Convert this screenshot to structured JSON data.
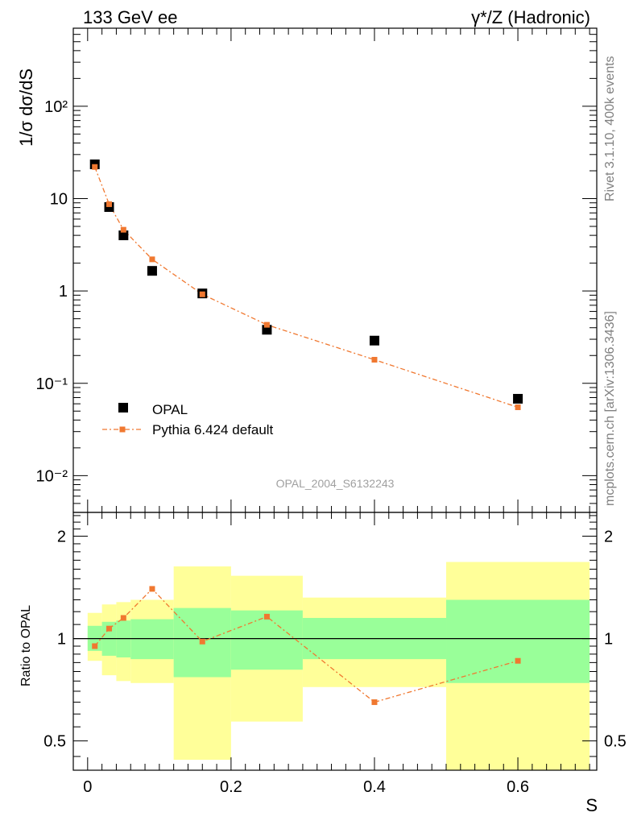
{
  "header": {
    "left": "133 GeV ee",
    "right": "γ*/Z (Hadronic)"
  },
  "side_labels": {
    "rivet": "Rivet 3.1.10,  400k events",
    "mcplots": "mcplots.cern.ch [arXiv:1306.3436]"
  },
  "watermark": "OPAL_2004_S6132243",
  "colors": {
    "data": "#000000",
    "mc": "#f07830",
    "band_inner": "#99ff99",
    "band_outer": "#ffff99"
  },
  "chart_data": [
    {
      "type": "scatter",
      "panel": "main",
      "ylabel": "1/σ dσ/dS",
      "yscale": "log",
      "ylim": [
        0.004,
        700
      ],
      "xlim": [
        -0.02,
        0.71
      ],
      "ytick_labels": [
        "10⁻²",
        "10⁻¹",
        "1",
        "10",
        "10²"
      ],
      "ytick_values": [
        0.01,
        0.1,
        1,
        10,
        100
      ],
      "legend_position": "bottom-left",
      "series": [
        {
          "name": "OPAL",
          "marker": "square",
          "x": [
            0.01,
            0.03,
            0.05,
            0.09,
            0.16,
            0.25,
            0.4,
            0.6
          ],
          "y": [
            23.5,
            8.1,
            4.0,
            1.65,
            0.94,
            0.38,
            0.29,
            0.068
          ]
        },
        {
          "name": "Pythia 6.424 default",
          "marker": "square-small",
          "line": "dash-dot",
          "x": [
            0.01,
            0.03,
            0.05,
            0.09,
            0.16,
            0.25,
            0.4,
            0.6
          ],
          "y": [
            22.0,
            8.7,
            4.6,
            2.2,
            0.92,
            0.43,
            0.18,
            0.055
          ]
        }
      ]
    },
    {
      "type": "line",
      "panel": "ratio",
      "ylabel": "Ratio to OPAL",
      "xlabel": "S",
      "yscale": "log",
      "ylim": [
        0.41,
        2.35
      ],
      "xlim": [
        -0.02,
        0.71
      ],
      "xtick_labels": [
        "0",
        "0.2",
        "0.4",
        "0.6"
      ],
      "xtick_values": [
        0,
        0.2,
        0.4,
        0.6
      ],
      "ytick_labels": [
        "0.5",
        "1",
        "2"
      ],
      "ytick_values": [
        0.5,
        1,
        2
      ],
      "bins": [
        {
          "x0": 0.0,
          "x1": 0.02,
          "inner": [
            0.92,
            1.09
          ],
          "outer": [
            0.86,
            1.19
          ]
        },
        {
          "x0": 0.02,
          "x1": 0.04,
          "inner": [
            0.89,
            1.12
          ],
          "outer": [
            0.78,
            1.26
          ]
        },
        {
          "x0": 0.04,
          "x1": 0.06,
          "inner": [
            0.88,
            1.13
          ],
          "outer": [
            0.75,
            1.28
          ]
        },
        {
          "x0": 0.06,
          "x1": 0.12,
          "inner": [
            0.87,
            1.14
          ],
          "outer": [
            0.74,
            1.3
          ]
        },
        {
          "x0": 0.12,
          "x1": 0.2,
          "inner": [
            0.77,
            1.23
          ],
          "outer": [
            0.44,
            1.63
          ]
        },
        {
          "x0": 0.2,
          "x1": 0.3,
          "inner": [
            0.81,
            1.21
          ],
          "outer": [
            0.57,
            1.53
          ]
        },
        {
          "x0": 0.3,
          "x1": 0.5,
          "inner": [
            0.87,
            1.15
          ],
          "outer": [
            0.72,
            1.32
          ]
        },
        {
          "x0": 0.5,
          "x1": 0.7,
          "inner": [
            0.74,
            1.3
          ],
          "outer": [
            0.41,
            1.68
          ]
        }
      ],
      "reference": 1,
      "series": [
        {
          "name": "Pythia 6.424 default",
          "x": [
            0.01,
            0.03,
            0.05,
            0.09,
            0.16,
            0.25,
            0.4,
            0.6
          ],
          "y": [
            0.95,
            1.07,
            1.15,
            1.4,
            0.98,
            1.16,
            0.65,
            0.86
          ]
        }
      ]
    }
  ]
}
